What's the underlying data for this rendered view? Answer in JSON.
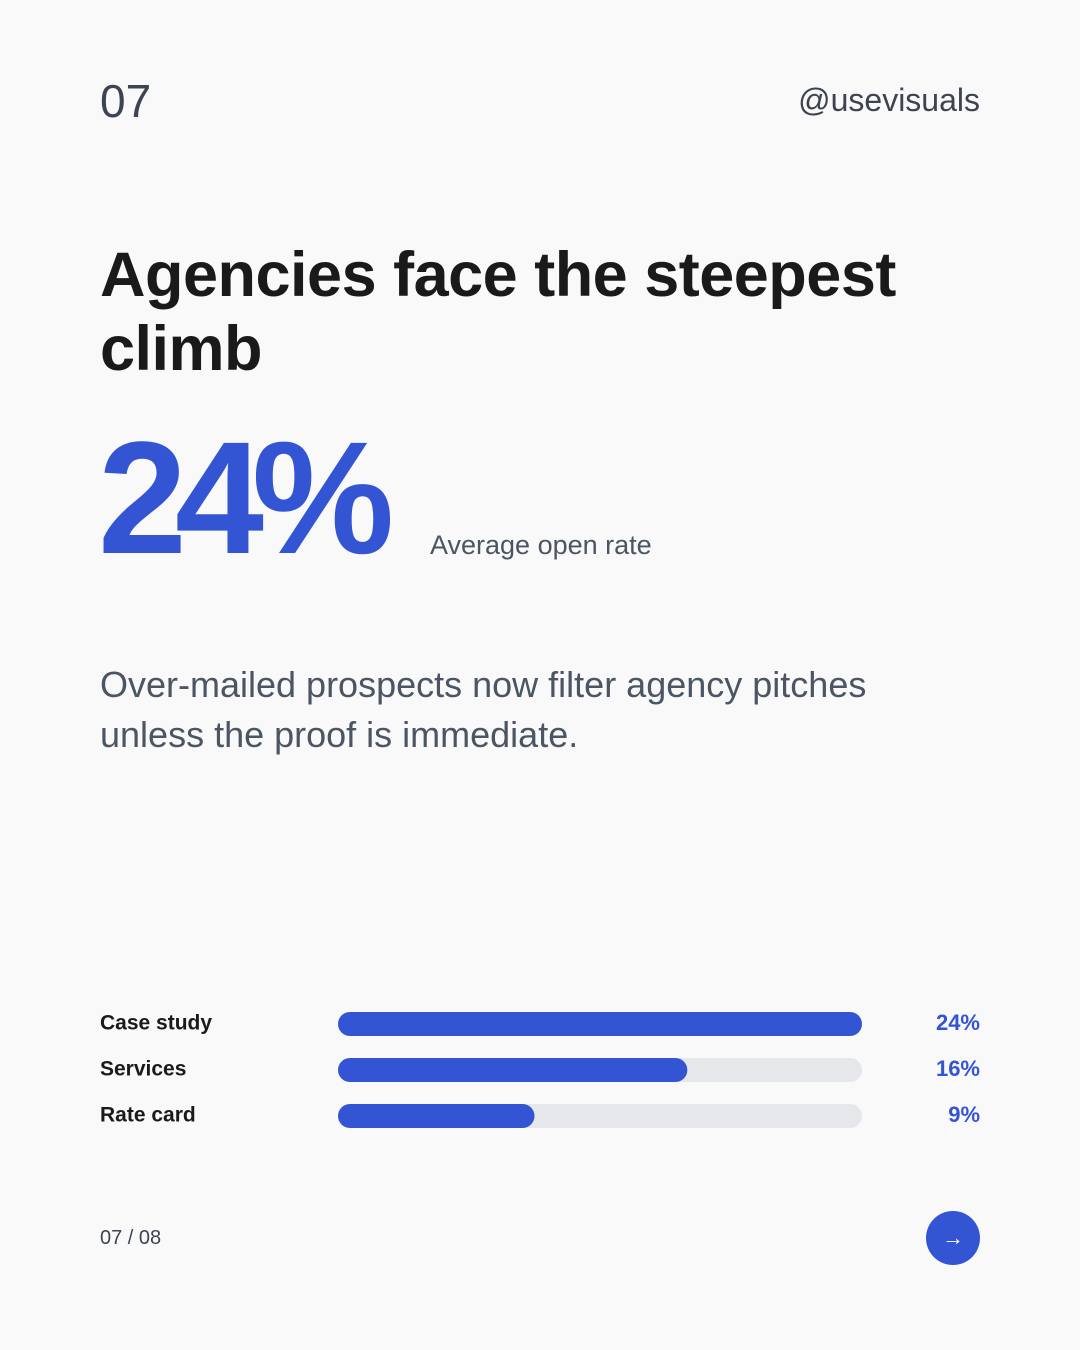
{
  "header": {
    "slide_number": "07",
    "handle": "@usevisuals"
  },
  "title": "Agencies face the steepest climb",
  "stat": {
    "value": "24%",
    "caption": "Average open rate"
  },
  "body": "Over-mailed prospects now filter agency pitches unless the proof is immediate.",
  "chart_data": {
    "type": "bar",
    "orientation": "horizontal",
    "categories": [
      "Case study",
      "Services",
      "Rate card"
    ],
    "values": [
      24,
      16,
      9
    ],
    "value_labels": [
      "24%",
      "16%",
      "9%"
    ],
    "color": "#3355d4",
    "track_color": "#e5e7eb"
  },
  "footer": {
    "pagination": "07 / 08",
    "next": "→"
  }
}
